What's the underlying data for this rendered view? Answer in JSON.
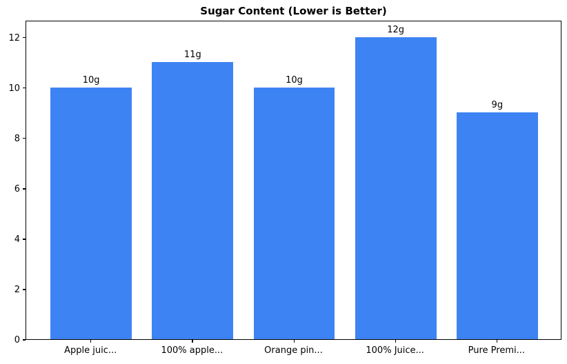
{
  "chart_data": {
    "type": "bar",
    "title": "Sugar Content (Lower is Better)",
    "categories": [
      "Apple juic...",
      "100% apple...",
      "Orange pin...",
      "100% Juice...",
      "Pure Premi..."
    ],
    "values": [
      10,
      11,
      10,
      12,
      9
    ],
    "bar_labels": [
      "10g",
      "11g",
      "10g",
      "12g",
      "9g"
    ],
    "yticks": [
      0,
      2,
      4,
      6,
      8,
      10,
      12
    ],
    "ylim": [
      0,
      12.68
    ],
    "xlabel": "",
    "ylabel": "",
    "grid": false,
    "bar_color": "#3e83f4",
    "axis_color": "#000000",
    "text_color": "#000000",
    "background_color": "#ffffff"
  }
}
